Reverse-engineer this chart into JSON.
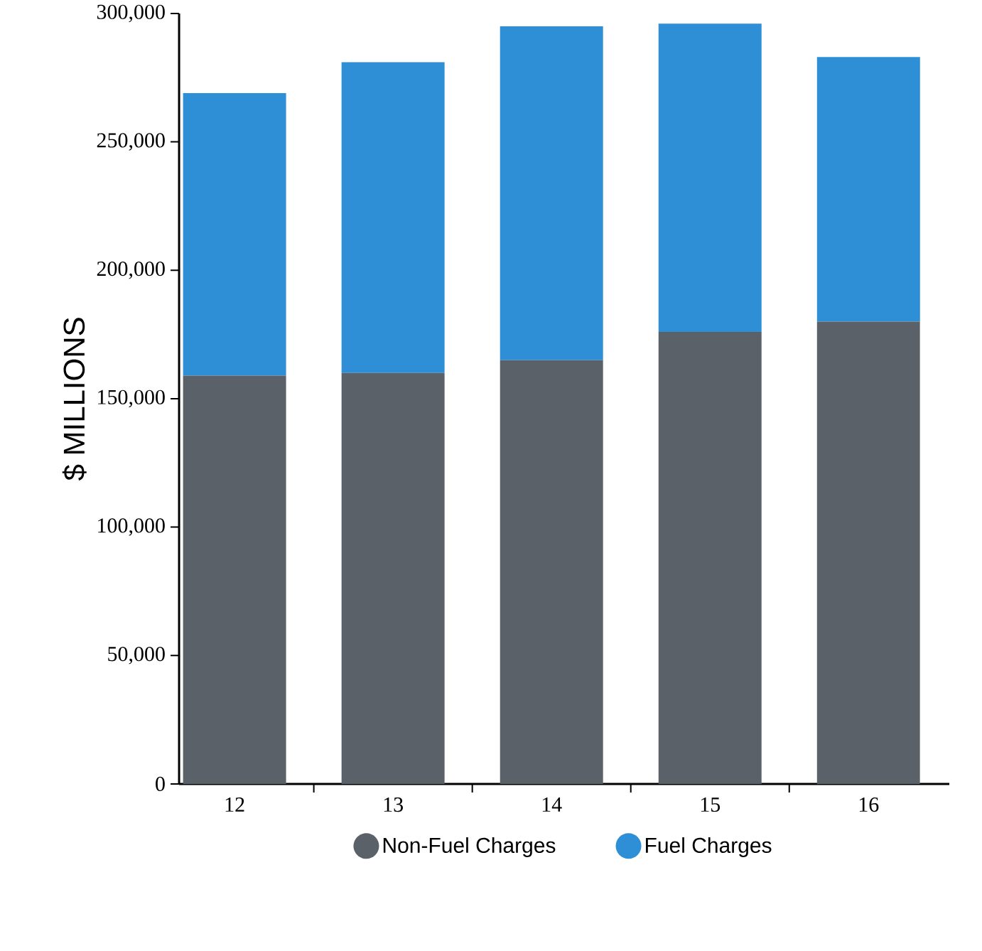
{
  "chart_data": {
    "type": "bar",
    "stacked": true,
    "ylabel": "$ MILLIONS",
    "categories": [
      "12",
      "13",
      "14",
      "15",
      "16"
    ],
    "series": [
      {
        "name": "Non-Fuel Charges",
        "color": "#5b6168",
        "values": [
          159000,
          160000,
          165000,
          176000,
          180000
        ]
      },
      {
        "name": "Fuel Charges",
        "color": "#2e8fd6",
        "values": [
          110000,
          121000,
          130000,
          120000,
          103000
        ]
      }
    ],
    "ylim": [
      0,
      300000
    ],
    "yticks": [
      0,
      {
        "value": 50000,
        "label": "50,000"
      },
      {
        "value": 100000,
        "label": "100,000"
      },
      {
        "value": 150000,
        "label": "150,000"
      },
      {
        "value": 200000,
        "label": "200,000"
      },
      {
        "value": 250000,
        "label": "250,000"
      },
      {
        "value": 300000,
        "label": "300,000"
      }
    ],
    "legend": "bottom",
    "grid": false
  }
}
